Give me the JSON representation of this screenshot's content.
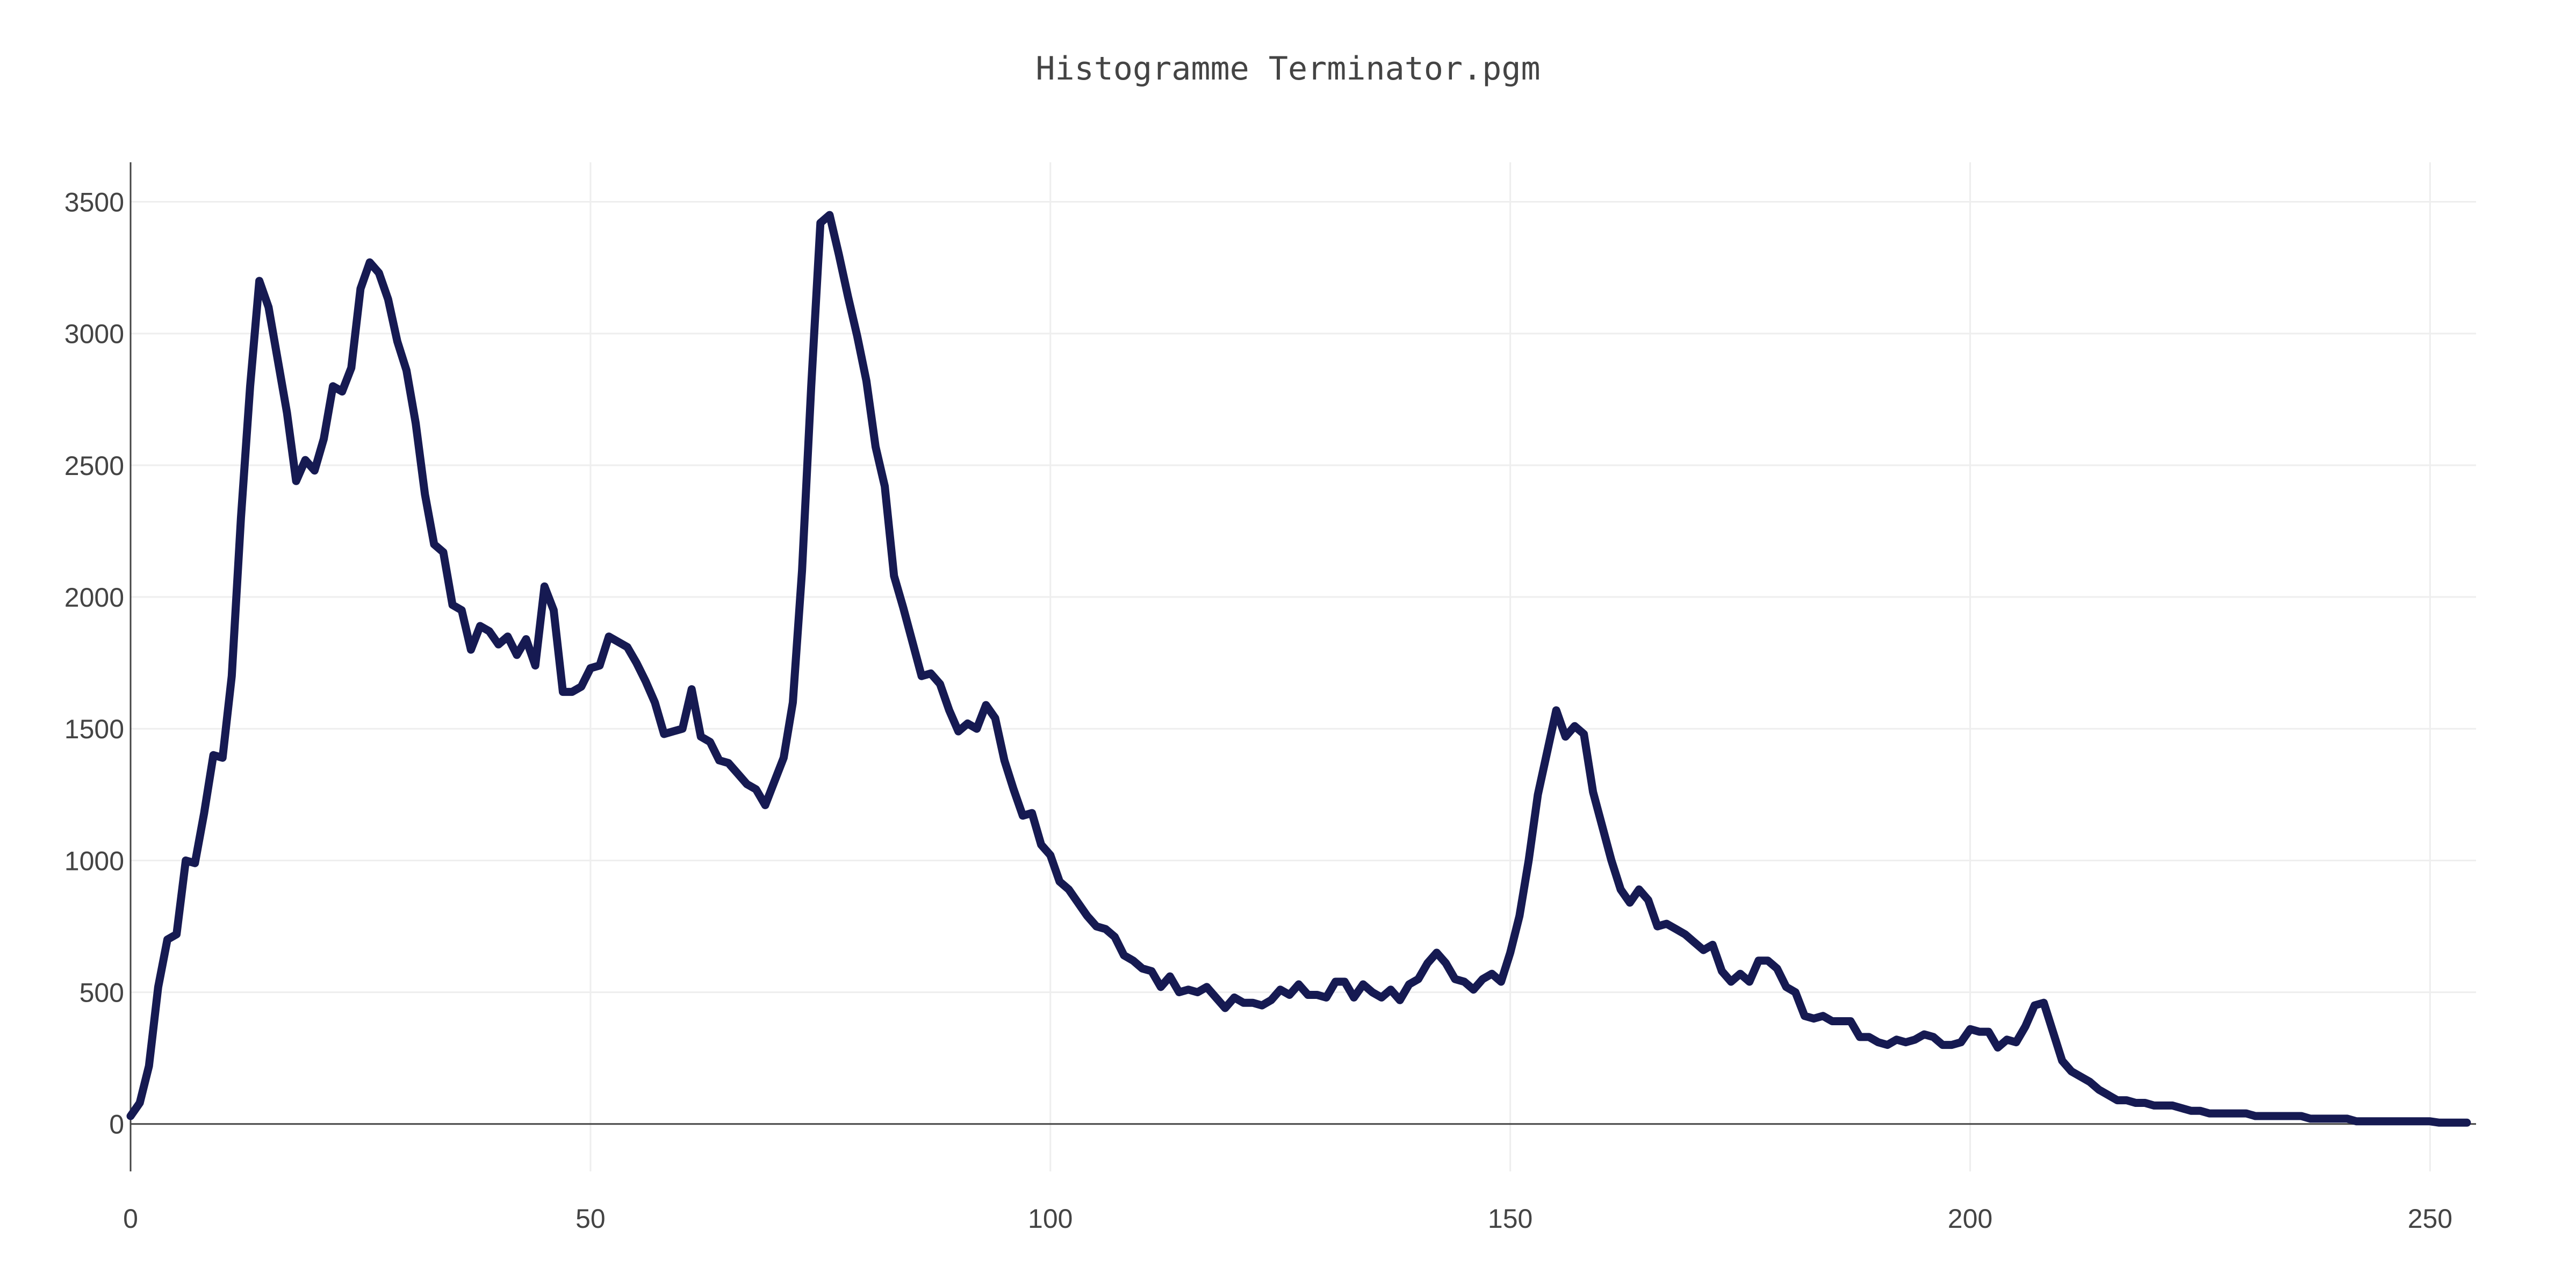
{
  "chart_data": {
    "type": "line",
    "title": "Histogramme Terminator.pgm",
    "xlabel": "",
    "ylabel": "",
    "xlim": [
      0,
      255
    ],
    "ylim": [
      -180,
      3650
    ],
    "xticks": [
      0,
      50,
      100,
      150,
      200,
      250
    ],
    "yticks": [
      0,
      500,
      1000,
      1500,
      2000,
      2500,
      3000,
      3500
    ],
    "grid": true,
    "legend": "none",
    "line_color": "#161a52",
    "series": [
      {
        "values": [
          30,
          80,
          220,
          520,
          700,
          720,
          1000,
          990,
          1180,
          1400,
          1390,
          1700,
          2300,
          2800,
          3200,
          3100,
          2900,
          2700,
          2440,
          2520,
          2480,
          2600,
          2800,
          2780,
          2870,
          3170,
          3270,
          3230,
          3130,
          2970,
          2860,
          2660,
          2390,
          2200,
          2170,
          1970,
          1950,
          1800,
          1890,
          1870,
          1820,
          1850,
          1780,
          1840,
          1740,
          2040,
          1950,
          1640,
          1640,
          1660,
          1730,
          1740,
          1850,
          1830,
          1810,
          1750,
          1680,
          1600,
          1480,
          1490,
          1500,
          1650,
          1470,
          1450,
          1380,
          1370,
          1330,
          1290,
          1270,
          1210,
          1300,
          1390,
          1600,
          2100,
          2800,
          3420,
          3450,
          3300,
          3140,
          2990,
          2820,
          2570,
          2420,
          2080,
          1960,
          1830,
          1700,
          1710,
          1670,
          1570,
          1490,
          1520,
          1500,
          1590,
          1540,
          1380,
          1270,
          1170,
          1180,
          1060,
          1020,
          920,
          890,
          840,
          790,
          750,
          740,
          710,
          640,
          620,
          590,
          580,
          520,
          560,
          500,
          510,
          500,
          520,
          480,
          440,
          480,
          460,
          460,
          450,
          470,
          510,
          490,
          530,
          490,
          490,
          480,
          540,
          540,
          480,
          530,
          500,
          480,
          510,
          470,
          530,
          550,
          610,
          650,
          610,
          550,
          540,
          510,
          550,
          570,
          540,
          650,
          790,
          1000,
          1250,
          1410,
          1570,
          1470,
          1510,
          1480,
          1260,
          1130,
          1000,
          890,
          840,
          890,
          850,
          750,
          760,
          740,
          720,
          690,
          660,
          680,
          580,
          540,
          570,
          540,
          620,
          620,
          590,
          520,
          500,
          410,
          400,
          410,
          390,
          390,
          390,
          330,
          330,
          310,
          300,
          320,
          310,
          320,
          340,
          330,
          300,
          300,
          310,
          360,
          350,
          350,
          290,
          320,
          310,
          370,
          450,
          460,
          350,
          240,
          200,
          180,
          160,
          130,
          110,
          90,
          90,
          80,
          80,
          70,
          70,
          70,
          60,
          50,
          50,
          40,
          40,
          40,
          40,
          40,
          30,
          30,
          30,
          30,
          30,
          30,
          20,
          20,
          20,
          20,
          20,
          10,
          10,
          10,
          10,
          10,
          10,
          10,
          10,
          10,
          5,
          5,
          5,
          5
        ]
      }
    ]
  }
}
